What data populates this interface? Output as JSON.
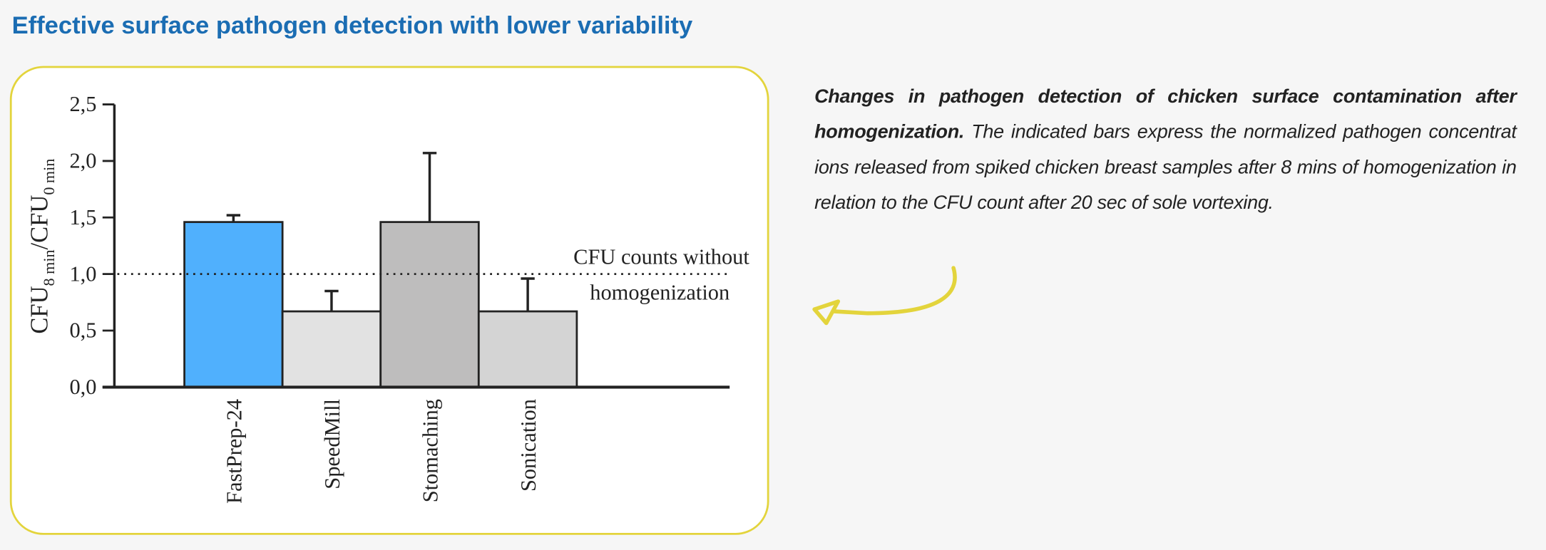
{
  "title": "Effective surface pathogen detection with lower variability",
  "caption": {
    "bold": "Changes in pathogen detection of chicken surface contamination after homogenization.",
    "text": " The indicated bars express the normalized pathogen concentrat  ions released from spiked chicken breast samples after 8 mins of homogenization in relation to the CFU count after 20 sec of sole vortexing."
  },
  "colors": {
    "title": "#1b6db3",
    "panel_border": "#e3d43c",
    "arrow": "#e3d43c"
  },
  "arrow_icon": "curved-arrow-left",
  "chart_data": {
    "type": "bar",
    "title": "",
    "ylabel_parts": {
      "main1": "CFU",
      "sub1": "8 min",
      "sep": "/",
      "main2": "CFU",
      "sub2": "0 min"
    },
    "ylim": [
      0,
      2.5
    ],
    "yticks": [
      "0,0",
      "0,5",
      "1,0",
      "1,5",
      "2,0",
      "2,5"
    ],
    "ytick_values": [
      0,
      0.5,
      1.0,
      1.5,
      2.0,
      2.5
    ],
    "categories": [
      "FastPrep-24",
      "SpeedMill",
      "Stomaching",
      "Sonication"
    ],
    "values": [
      1.46,
      0.67,
      1.46,
      0.67
    ],
    "error_upper": [
      1.52,
      0.85,
      2.07,
      0.96
    ],
    "bar_colors": [
      "#50b0fd",
      "#e2e2e2",
      "#bebdbd",
      "#d4d4d4"
    ],
    "reference_line": {
      "value": 1.0,
      "style": "dotted",
      "label_line1": "CFU counts without",
      "label_line2": "homogenization"
    },
    "grid": false
  }
}
